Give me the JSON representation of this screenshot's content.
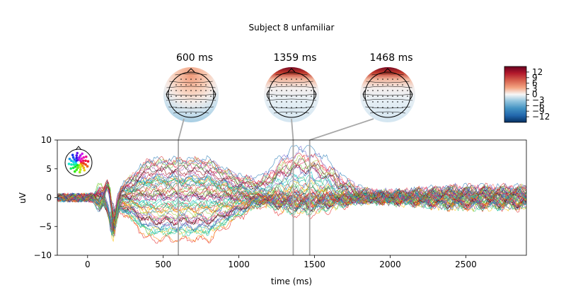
{
  "figure": {
    "title": "Subject 8 unfamiliar"
  },
  "topomaps": [
    {
      "label": "600 ms",
      "time_ms": 600,
      "pattern": "frontal-positive"
    },
    {
      "label": "1359 ms",
      "time_ms": 1359,
      "pattern": "frontal-edge-positive"
    },
    {
      "label": "1468 ms",
      "time_ms": 1468,
      "pattern": "frontal-edge-positive"
    }
  ],
  "colorbar": {
    "colormap": "RdBu_r",
    "ticks": [
      "12",
      "9",
      "6",
      "3",
      "0",
      "−3",
      "−6",
      "−9",
      "−12"
    ],
    "tick_values": [
      12,
      9,
      6,
      3,
      0,
      -3,
      -6,
      -9,
      -12
    ],
    "range": [
      -15,
      15
    ]
  },
  "chart_data": {
    "type": "line",
    "title": "",
    "xlabel": "time (ms)",
    "ylabel": "uV",
    "xlim": [
      -200,
      2900
    ],
    "ylim": [
      -10,
      10
    ],
    "xticks": [
      0,
      500,
      1000,
      1500,
      2000,
      2500
    ],
    "yticks": [
      -10,
      -5,
      0,
      5,
      10
    ],
    "n_channels": 60,
    "grid": false,
    "legend": "none",
    "sensor_inset": "top-left",
    "time_markers_ms": [
      600,
      1359,
      1468
    ],
    "series_shape": {
      "baseline_ms": [
        -200,
        0
      ],
      "early_peak_ms": 140,
      "early_peak_uv": [
        -7,
        5
      ],
      "sustained_window_ms": [
        200,
        1100
      ],
      "sustained_range_uv": [
        -8,
        7
      ],
      "late_component_ms": [
        1200,
        1800
      ],
      "late_range_uv": [
        -5,
        10
      ],
      "tail_range_uv": [
        -2,
        3
      ]
    }
  }
}
